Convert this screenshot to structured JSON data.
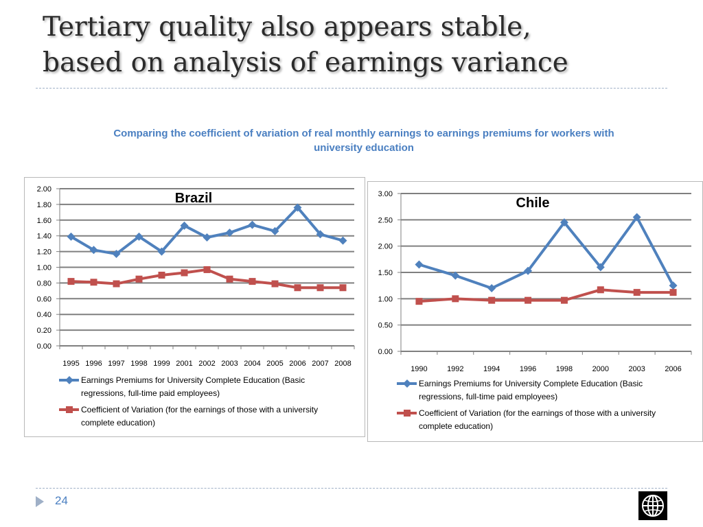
{
  "slide": {
    "title_line1": "Tertiary quality also appears stable,",
    "title_line2": "based on analysis of earnings variance",
    "subtitle_line1": "Comparing the coefficient of variation of real monthly earnings to earnings premiums for workers with",
    "subtitle_line2": "university education",
    "page_number": "24",
    "colors": {
      "accent": "#4a7fc1",
      "series1": "#4f81bd",
      "series2": "#c0504d"
    }
  },
  "chart_data": [
    {
      "type": "line",
      "title": "Brazil",
      "categories": [
        "1995",
        "1996",
        "1997",
        "1998",
        "1999",
        "2001",
        "2002",
        "2003",
        "2004",
        "2005",
        "2006",
        "2007",
        "2008"
      ],
      "ylim": [
        0,
        2.0
      ],
      "yticks": [
        "0.00",
        "0.20",
        "0.40",
        "0.60",
        "0.80",
        "1.00",
        "1.20",
        "1.40",
        "1.60",
        "1.80",
        "2.00"
      ],
      "grid": true,
      "legend_placement": "bottom",
      "series": [
        {
          "name": "Earnings Premiums for University Complete Education (Basic regressions, full-time paid employees)",
          "legend_line1": "Earnings Premiums for University Complete Education (Basic",
          "legend_line2": "regressions, full-time paid employees)",
          "values": [
            1.39,
            1.22,
            1.17,
            1.39,
            1.2,
            1.53,
            1.38,
            1.44,
            1.54,
            1.46,
            1.76,
            1.42,
            1.34
          ]
        },
        {
          "name": "Coefficient of Variation (for the earnings of those with a university complete education)",
          "legend_line1": "Coefficient of Variation (for the earnings of those with a university",
          "legend_line2": "complete education)",
          "values": [
            0.82,
            0.81,
            0.79,
            0.85,
            0.9,
            0.93,
            0.97,
            0.85,
            0.82,
            0.79,
            0.74,
            0.74,
            0.74
          ]
        }
      ]
    },
    {
      "type": "line",
      "title": "Chile",
      "categories": [
        "1990",
        "1992",
        "1994",
        "1996",
        "1998",
        "2000",
        "2003",
        "2006"
      ],
      "ylim": [
        0,
        3.0
      ],
      "yticks": [
        "0.00",
        "0.50",
        "1.00",
        "1.50",
        "2.00",
        "2.50",
        "3.00"
      ],
      "grid": true,
      "legend_placement": "bottom",
      "series": [
        {
          "name": "Earnings Premiums for University Complete Education (Basic regressions, full-time paid employees)",
          "legend_line1": "Earnings Premiums for University Complete Education (Basic",
          "legend_line2": "regressions, full-time paid employees)",
          "values": [
            1.65,
            1.44,
            1.2,
            1.53,
            2.45,
            1.6,
            2.55,
            1.25
          ]
        },
        {
          "name": "Coefficient of Variation (for the earnings of those with a university complete education)",
          "legend_line1": "Coefficient of Variation (for the earnings of those with a university",
          "legend_line2": "complete education)",
          "values": [
            0.95,
            1.0,
            0.97,
            0.97,
            0.97,
            1.17,
            1.12,
            1.12
          ]
        }
      ]
    }
  ]
}
